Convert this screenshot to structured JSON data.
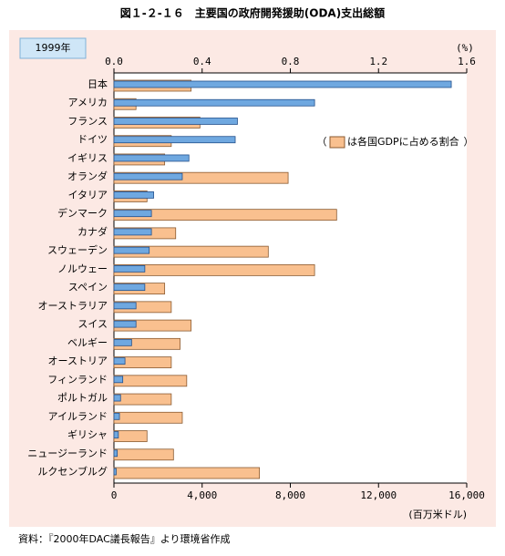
{
  "chart_data": {
    "type": "bar",
    "orientation": "horizontal",
    "title": "図１-２-１６　主要国の政府開発援助(ODA)支出総額",
    "tag": "1999年",
    "x_unit": "(百万米ドル)",
    "x2_unit": "(%)",
    "legend_open": "（",
    "legend_close": "）",
    "source": "資料：『2000年DAC議長報告』より環境省作成",
    "categories": [
      "日本",
      "アメリカ",
      "フランス",
      "ドイツ",
      "イギリス",
      "オランダ",
      "イタリア",
      "デンマーク",
      "カナダ",
      "スウェーデン",
      "ノルウェー",
      "スペイン",
      "オーストラリア",
      "スイス",
      "ベルギー",
      "オーストリア",
      "フィンランド",
      "ポルトガル",
      "アイルランド",
      "ギリシャ",
      "ニュージーランド",
      "ルクセンブルグ"
    ],
    "series": [
      {
        "color": "#6fa8e0",
        "values": [
          15300,
          9100,
          5600,
          5500,
          3400,
          3100,
          1800,
          1700,
          1700,
          1600,
          1400,
          1400,
          1000,
          1000,
          800,
          500,
          400,
          300,
          250,
          200,
          150,
          100
        ]
      },
      {
        "name": "は各国GDPに占める割合",
        "color": "#f9c08f",
        "axis": "x2",
        "values": [
          0.35,
          0.1,
          0.39,
          0.26,
          0.23,
          0.79,
          0.15,
          1.01,
          0.28,
          0.7,
          0.91,
          0.23,
          0.26,
          0.35,
          0.3,
          0.26,
          0.33,
          0.26,
          0.31,
          0.15,
          0.27,
          0.66
        ]
      }
    ],
    "xlim": [
      0,
      16000
    ],
    "xticks": [
      0,
      {
        "value": 4000,
        "label": "4,000"
      },
      {
        "value": 8000,
        "label": "8,000"
      },
      {
        "value": 12000,
        "label": "12,000"
      },
      {
        "value": 16000,
        "label": "16,000"
      }
    ],
    "x2lim": [
      0,
      1.6
    ],
    "x2ticks": [
      {
        "value": 0,
        "label": "0.0"
      },
      0.4,
      0.8,
      1.2,
      1.6
    ],
    "legend": "right"
  }
}
